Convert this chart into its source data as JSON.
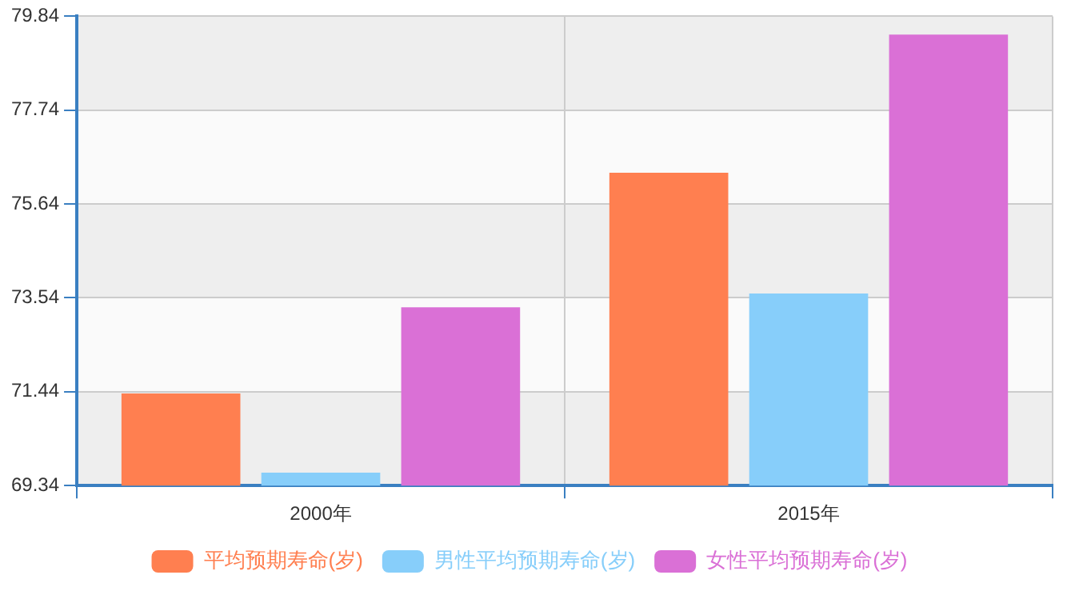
{
  "chart_data": {
    "type": "bar",
    "categories": [
      "2000年",
      "2015年"
    ],
    "series": [
      {
        "name": "平均预期寿命(岁)",
        "color": "#ff7f50",
        "values": [
          71.4,
          76.34
        ]
      },
      {
        "name": "男性平均预期寿命(岁)",
        "color": "#87cefa",
        "values": [
          69.63,
          73.64
        ]
      },
      {
        "name": "女性平均预期寿命(岁)",
        "color": "#da70d6",
        "values": [
          73.33,
          79.43
        ]
      }
    ],
    "ylim": [
      69.34,
      79.84
    ],
    "yticks": [
      69.34,
      71.44,
      73.54,
      75.64,
      77.74,
      79.84
    ],
    "grid": true,
    "legend": "bottom"
  }
}
